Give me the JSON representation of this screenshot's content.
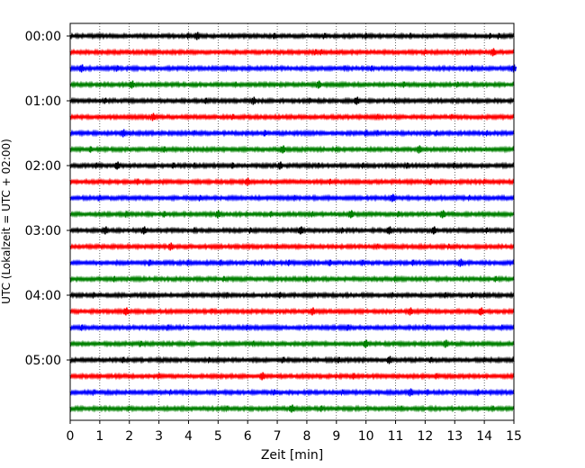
{
  "chart_data": {
    "type": "line",
    "title": "",
    "xlabel": "Zeit  [min]",
    "ylabel": "UTC (Lokalzeit = UTC + 02:00)",
    "xlim": [
      0,
      15
    ],
    "x_ticks": [
      "0",
      "1",
      "2",
      "3",
      "4",
      "5",
      "6",
      "7",
      "8",
      "9",
      "10",
      "11",
      "12",
      "13",
      "14",
      "15"
    ],
    "y_tick_labels": [
      "00:00",
      "01:00",
      "02:00",
      "03:00",
      "04:00",
      "05:00"
    ],
    "trace_interval_min": 15,
    "trace_count": 24,
    "trace_colors": [
      "#000000",
      "#ff0000",
      "#0000ff",
      "#008000"
    ],
    "vertical_grid": true,
    "series": [
      {
        "start": "00:00",
        "events": [
          4.0,
          4.3,
          6.9,
          8.6,
          10.0,
          11.5,
          14.2,
          14.5
        ]
      },
      {
        "start": "00:15",
        "events": [
          8.3,
          8.5,
          12.0,
          13.4,
          14.3
        ]
      },
      {
        "start": "00:30",
        "events": [
          0.4,
          1.6,
          5.3,
          9.3,
          10.2,
          13.6,
          15.0
        ]
      },
      {
        "start": "00:45",
        "events": [
          2.1,
          5.6,
          8.4,
          11.3,
          13.1
        ]
      },
      {
        "start": "01:00",
        "events": [
          1.2,
          4.6,
          6.2,
          8.1,
          9.7,
          11.0
        ]
      },
      {
        "start": "01:15",
        "events": [
          2.8,
          5.5,
          10.4,
          12.9
        ]
      },
      {
        "start": "01:30",
        "events": [
          1.8,
          4.2,
          6.6,
          10.0,
          10.4,
          12.4,
          14.1
        ]
      },
      {
        "start": "01:45",
        "events": [
          0.7,
          3.2,
          7.2,
          9.0,
          11.8
        ]
      },
      {
        "start": "02:00",
        "events": [
          0.9,
          1.6,
          3.5,
          4.2,
          5.5,
          7.1,
          8.4,
          9.9,
          11.4,
          13.0
        ]
      },
      {
        "start": "02:15",
        "events": [
          2.3,
          6.0,
          8.8,
          12.2,
          14.0
        ]
      },
      {
        "start": "02:30",
        "events": [
          1.0,
          4.4,
          7.6,
          10.9,
          13.5
        ]
      },
      {
        "start": "02:45",
        "events": [
          1.9,
          3.2,
          5.0,
          6.8,
          8.2,
          9.5,
          11.1,
          12.6
        ]
      },
      {
        "start": "03:00",
        "events": [
          1.2,
          2.5,
          4.2,
          6.1,
          7.8,
          9.2,
          10.8,
          12.3,
          14.1
        ]
      },
      {
        "start": "03:15",
        "events": [
          3.4,
          7.0,
          10.4,
          12.8
        ]
      },
      {
        "start": "03:30",
        "events": [
          2.7,
          4.0,
          5.1,
          6.5,
          7.4,
          8.8,
          9.9,
          11.6,
          13.2
        ]
      },
      {
        "start": "03:45",
        "events": [
          1.5,
          5.2,
          8.0,
          11.0,
          14.4
        ]
      },
      {
        "start": "04:00",
        "events": [
          0.8,
          5.3,
          7.1,
          10.9,
          12.7,
          13.6,
          14.0
        ]
      },
      {
        "start": "04:15",
        "events": [
          1.9,
          4.8,
          8.2,
          11.5,
          13.9
        ]
      },
      {
        "start": "04:30",
        "events": [
          0.4,
          3.3,
          6.0,
          9.4,
          12.1,
          14.6
        ]
      },
      {
        "start": "04:45",
        "events": [
          2.4,
          6.2,
          10.0,
          12.7
        ]
      },
      {
        "start": "05:00",
        "events": [
          1.8,
          4.7,
          7.2,
          9.1,
          10.8,
          12.2,
          14.0
        ]
      },
      {
        "start": "05:15",
        "events": [
          3.0,
          6.5,
          9.6,
          12.4
        ]
      },
      {
        "start": "05:30",
        "events": [
          0.8,
          3.4,
          6.9,
          9.2,
          11.5,
          12.1,
          13.8
        ]
      },
      {
        "start": "05:45",
        "events": [
          2.0,
          5.3,
          7.5,
          8.5,
          11.2,
          14.3
        ]
      }
    ]
  }
}
